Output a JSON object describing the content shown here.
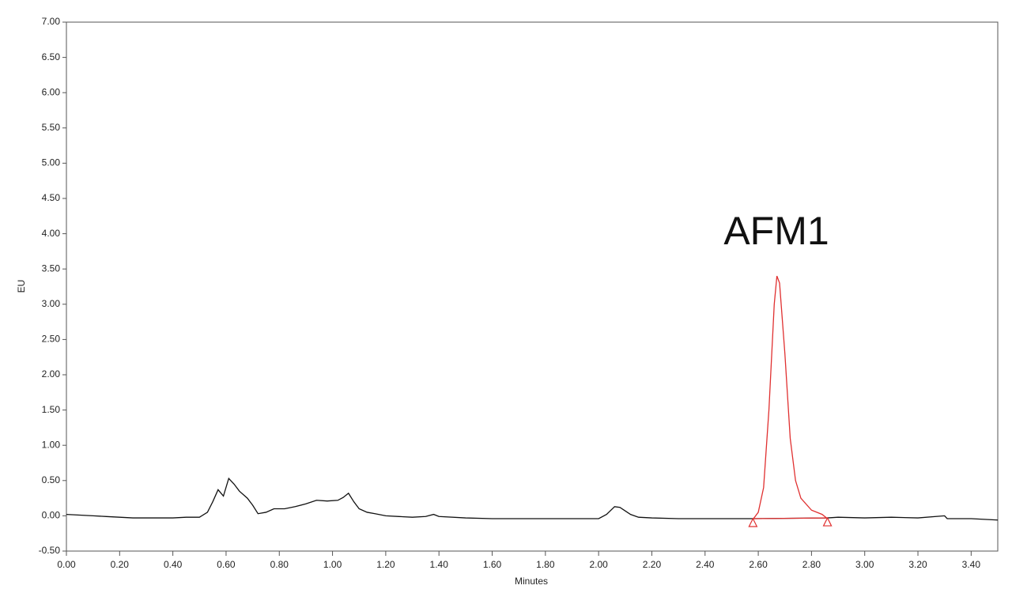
{
  "chart_data": {
    "type": "line",
    "x_label": "Minutes",
    "y_label": "EU",
    "annotation": "AFM1",
    "xlim": [
      0,
      3.5
    ],
    "ylim": [
      -0.5,
      7
    ],
    "xticks": [
      {
        "value": 0,
        "label": "0.00"
      },
      {
        "value": 0.2,
        "label": "0.20"
      },
      {
        "value": 0.4,
        "label": "0.40"
      },
      {
        "value": 0.6,
        "label": "0.60"
      },
      {
        "value": 0.8,
        "label": "0.80"
      },
      {
        "value": 1,
        "label": "1.00"
      },
      {
        "value": 1.2,
        "label": "1.20"
      },
      {
        "value": 1.4,
        "label": "1.40"
      },
      {
        "value": 1.6,
        "label": "1.60"
      },
      {
        "value": 1.8,
        "label": "1.80"
      },
      {
        "value": 2,
        "label": "2.00"
      },
      {
        "value": 2.2,
        "label": "2.20"
      },
      {
        "value": 2.4,
        "label": "2.40"
      },
      {
        "value": 2.6,
        "label": "2.60"
      },
      {
        "value": 2.8,
        "label": "2.80"
      },
      {
        "value": 3,
        "label": "3.00"
      },
      {
        "value": 3.2,
        "label": "3.20"
      },
      {
        "value": 3.4,
        "label": "3.40"
      }
    ],
    "yticks": [
      {
        "value": -0.5,
        "label": "-0.50"
      },
      {
        "value": 0,
        "label": "0.00"
      },
      {
        "value": 0.5,
        "label": "0.50"
      },
      {
        "value": 1,
        "label": "1.00"
      },
      {
        "value": 1.5,
        "label": "1.50"
      },
      {
        "value": 2,
        "label": "2.00"
      },
      {
        "value": 2.5,
        "label": "2.50"
      },
      {
        "value": 3,
        "label": "3.00"
      },
      {
        "value": 3.5,
        "label": "3.50"
      },
      {
        "value": 4,
        "label": "4.00"
      },
      {
        "value": 4.5,
        "label": "4.50"
      },
      {
        "value": 5,
        "label": "5.00"
      },
      {
        "value": 5.5,
        "label": "5.50"
      },
      {
        "value": 6,
        "label": "6.00"
      },
      {
        "value": 6.5,
        "label": "6.50"
      },
      {
        "value": 7,
        "label": "7.00"
      }
    ],
    "series": [
      {
        "color": "#111111",
        "x": [
          0,
          0.05,
          0.1,
          0.15,
          0.2,
          0.25,
          0.3,
          0.35,
          0.4,
          0.45,
          0.5,
          0.53,
          0.55,
          0.57,
          0.59,
          0.61,
          0.63,
          0.65,
          0.68,
          0.7,
          0.72,
          0.75,
          0.78,
          0.82,
          0.86,
          0.9,
          0.94,
          0.98,
          1.02,
          1.04,
          1.06,
          1.08,
          1.1,
          1.13,
          1.16,
          1.2,
          1.25,
          1.3,
          1.35,
          1.38,
          1.4,
          1.5,
          1.6,
          1.7,
          1.8,
          1.9,
          2,
          2.03,
          2.06,
          2.08,
          2.1,
          2.12,
          2.15,
          2.2,
          2.3,
          2.4,
          2.5,
          2.58,
          2.86,
          2.9,
          3,
          3.1,
          3.2,
          3.3,
          3.31,
          3.4,
          3.5
        ],
        "values": [
          0.02,
          0.01,
          0,
          -0.01,
          -0.02,
          -0.03,
          -0.03,
          -0.03,
          -0.03,
          -0.02,
          -0.02,
          0.05,
          0.2,
          0.37,
          0.28,
          0.53,
          0.45,
          0.35,
          0.25,
          0.15,
          0.03,
          0.05,
          0.1,
          0.1,
          0.13,
          0.17,
          0.22,
          0.21,
          0.22,
          0.26,
          0.32,
          0.2,
          0.1,
          0.05,
          0.03,
          0,
          -0.01,
          -0.02,
          -0.01,
          0.02,
          -0.01,
          -0.03,
          -0.04,
          -0.04,
          -0.04,
          -0.04,
          -0.04,
          0.02,
          0.13,
          0.12,
          0.07,
          0.02,
          -0.02,
          -0.03,
          -0.04,
          -0.04,
          -0.04,
          -0.04,
          -0.03,
          -0.02,
          -0.03,
          -0.02,
          -0.03,
          0,
          -0.04,
          -0.04,
          -0.06
        ]
      },
      {
        "color": "#e03030",
        "x": [
          2.58,
          2.6,
          2.62,
          2.64,
          2.66,
          2.67,
          2.68,
          2.7,
          2.72,
          2.74,
          2.76,
          2.8,
          2.84,
          2.86
        ],
        "values": [
          -0.05,
          0.05,
          0.4,
          1.5,
          3.0,
          3.4,
          3.3,
          2.3,
          1.1,
          0.5,
          0.25,
          0.08,
          0.02,
          -0.04
        ]
      },
      {
        "color": "#e03030",
        "marker": "triangle",
        "x": [
          2.58,
          2.86
        ],
        "values": [
          -0.04,
          -0.03
        ]
      }
    ]
  }
}
